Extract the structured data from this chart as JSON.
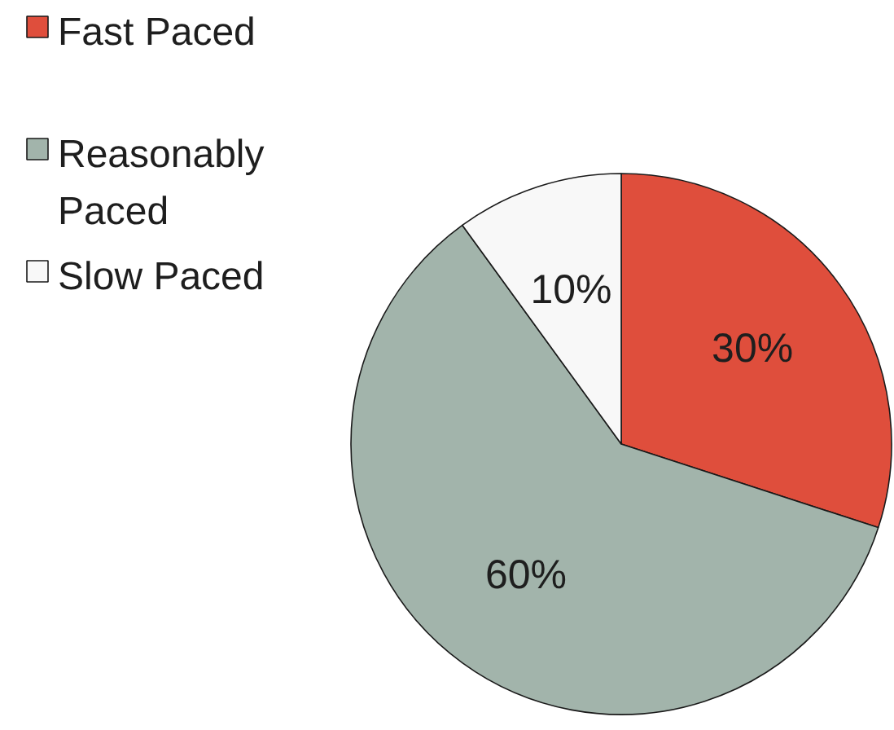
{
  "chart_data": {
    "type": "pie",
    "categories": [
      "Fast Paced",
      "Reasonably Paced",
      "Slow Paced"
    ],
    "values": [
      30,
      60,
      10
    ],
    "colors": [
      "#df4e3c",
      "#a2b4ab",
      "#f8f8f8"
    ],
    "value_labels": [
      "30%",
      "60%",
      "10%"
    ],
    "legend": "top left"
  }
}
